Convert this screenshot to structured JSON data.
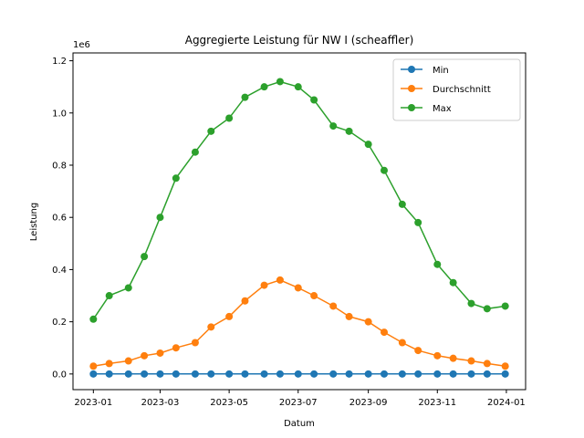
{
  "chart_data": {
    "type": "line",
    "title": "Aggregierte Leistung für NW I (scheaffler)",
    "xlabel": "Datum",
    "ylabel": "Leistung",
    "y_offset_label": "1e6",
    "xlim": [
      "2022-12-14",
      "2024-01-18"
    ],
    "ylim": [
      -0.06,
      1.23
    ],
    "x_ticks": [
      {
        "date": "2023-01-01",
        "label": "2023-01"
      },
      {
        "date": "2023-03-01",
        "label": "2023-03"
      },
      {
        "date": "2023-05-01",
        "label": "2023-05"
      },
      {
        "date": "2023-07-01",
        "label": "2023-07"
      },
      {
        "date": "2023-09-01",
        "label": "2023-09"
      },
      {
        "date": "2023-11-01",
        "label": "2023-11"
      },
      {
        "date": "2024-01-01",
        "label": "2024-01"
      }
    ],
    "y_ticks": [
      {
        "value": 0.0,
        "label": "0.0"
      },
      {
        "value": 0.2,
        "label": "0.2"
      },
      {
        "value": 0.4,
        "label": "0.4"
      },
      {
        "value": 0.6,
        "label": "0.6"
      },
      {
        "value": 0.8,
        "label": "0.8"
      },
      {
        "value": 1.0,
        "label": "1.0"
      },
      {
        "value": 1.2,
        "label": "1.2"
      }
    ],
    "grid": false,
    "legend_position": "top-right",
    "series": [
      {
        "name": "Min",
        "color": "#1f77b4",
        "x": [
          "2023-01-01",
          "2023-01-15",
          "2023-02-01",
          "2023-02-15",
          "2023-03-01",
          "2023-03-15",
          "2023-04-01",
          "2023-04-15",
          "2023-05-01",
          "2023-05-15",
          "2023-06-01",
          "2023-06-15",
          "2023-07-01",
          "2023-07-15",
          "2023-08-01",
          "2023-08-15",
          "2023-09-01",
          "2023-09-15",
          "2023-10-01",
          "2023-10-15",
          "2023-11-01",
          "2023-11-15",
          "2023-12-01",
          "2023-12-15",
          "2023-12-31"
        ],
        "y": [
          0.0,
          0.0,
          0.0,
          0.0,
          0.0,
          0.0,
          0.0,
          0.0,
          0.0,
          0.0,
          0.0,
          0.0,
          0.0,
          0.0,
          0.0,
          0.0,
          0.0,
          0.0,
          0.0,
          0.0,
          0.0,
          0.0,
          0.0,
          0.0,
          0.0
        ]
      },
      {
        "name": "Durchschnitt",
        "color": "#ff7f0e",
        "x": [
          "2023-01-01",
          "2023-01-15",
          "2023-02-01",
          "2023-02-15",
          "2023-03-01",
          "2023-03-15",
          "2023-04-01",
          "2023-04-15",
          "2023-05-01",
          "2023-05-15",
          "2023-06-01",
          "2023-06-15",
          "2023-07-01",
          "2023-07-15",
          "2023-08-01",
          "2023-08-15",
          "2023-09-01",
          "2023-09-15",
          "2023-10-01",
          "2023-10-15",
          "2023-11-01",
          "2023-11-15",
          "2023-12-01",
          "2023-12-15",
          "2023-12-31"
        ],
        "y": [
          0.03,
          0.04,
          0.05,
          0.07,
          0.08,
          0.1,
          0.12,
          0.18,
          0.22,
          0.28,
          0.34,
          0.36,
          0.33,
          0.3,
          0.26,
          0.22,
          0.2,
          0.16,
          0.12,
          0.09,
          0.07,
          0.06,
          0.05,
          0.04,
          0.03
        ]
      },
      {
        "name": "Max",
        "color": "#2ca02c",
        "x": [
          "2023-01-01",
          "2023-01-15",
          "2023-02-01",
          "2023-02-15",
          "2023-03-01",
          "2023-03-15",
          "2023-04-01",
          "2023-04-15",
          "2023-05-01",
          "2023-05-15",
          "2023-06-01",
          "2023-06-15",
          "2023-07-01",
          "2023-07-15",
          "2023-08-01",
          "2023-08-15",
          "2023-09-01",
          "2023-09-15",
          "2023-10-01",
          "2023-10-15",
          "2023-11-01",
          "2023-11-15",
          "2023-12-01",
          "2023-12-15",
          "2023-12-31"
        ],
        "y": [
          0.21,
          0.3,
          0.33,
          0.45,
          0.6,
          0.75,
          0.85,
          0.93,
          0.98,
          1.06,
          1.1,
          1.12,
          1.1,
          1.05,
          0.95,
          0.93,
          0.88,
          0.78,
          0.65,
          0.58,
          0.42,
          0.35,
          0.27,
          0.25,
          0.26
        ]
      }
    ]
  }
}
